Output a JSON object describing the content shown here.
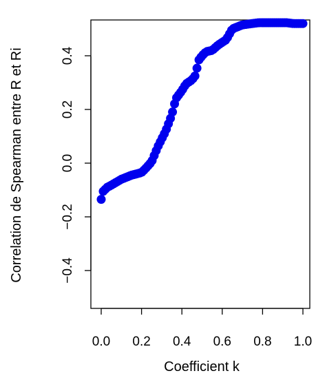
{
  "chart_data": {
    "type": "scatter",
    "title": "",
    "xlabel": "Coefficient k",
    "ylabel": "Correlation de Spearman entre R et Ri",
    "xlim": [
      0.0,
      1.0
    ],
    "ylim": [
      -0.53,
      0.53
    ],
    "x_ticks": [
      0.0,
      0.2,
      0.4,
      0.6,
      0.8,
      1.0
    ],
    "x_tick_labels": [
      "0.0",
      "0.2",
      "0.4",
      "0.6",
      "0.8",
      "1.0"
    ],
    "y_ticks": [
      -0.4,
      -0.2,
      0.0,
      0.2,
      0.4
    ],
    "y_tick_labels": [
      "−0.4",
      "−0.2",
      "0.0",
      "0.2",
      "0.4"
    ],
    "grid": false,
    "legend": "none",
    "point_color": "#0000ee",
    "anchors": [
      [
        0.0,
        -0.135
      ],
      [
        0.01,
        -0.105
      ],
      [
        0.03,
        -0.09
      ],
      [
        0.05,
        -0.082
      ],
      [
        0.1,
        -0.06
      ],
      [
        0.15,
        -0.045
      ],
      [
        0.2,
        -0.035
      ],
      [
        0.22,
        -0.02
      ],
      [
        0.25,
        0.005
      ],
      [
        0.28,
        0.06
      ],
      [
        0.32,
        0.12
      ],
      [
        0.35,
        0.18
      ],
      [
        0.37,
        0.24
      ],
      [
        0.4,
        0.27
      ],
      [
        0.42,
        0.295
      ],
      [
        0.45,
        0.31
      ],
      [
        0.47,
        0.33
      ],
      [
        0.48,
        0.38
      ],
      [
        0.5,
        0.4
      ],
      [
        0.52,
        0.415
      ],
      [
        0.55,
        0.42
      ],
      [
        0.58,
        0.44
      ],
      [
        0.62,
        0.46
      ],
      [
        0.65,
        0.5
      ],
      [
        0.7,
        0.515
      ],
      [
        0.75,
        0.52
      ],
      [
        0.8,
        0.525
      ],
      [
        0.85,
        0.53
      ],
      [
        0.9,
        0.525
      ],
      [
        0.95,
        0.52
      ],
      [
        1.0,
        0.52
      ]
    ]
  }
}
